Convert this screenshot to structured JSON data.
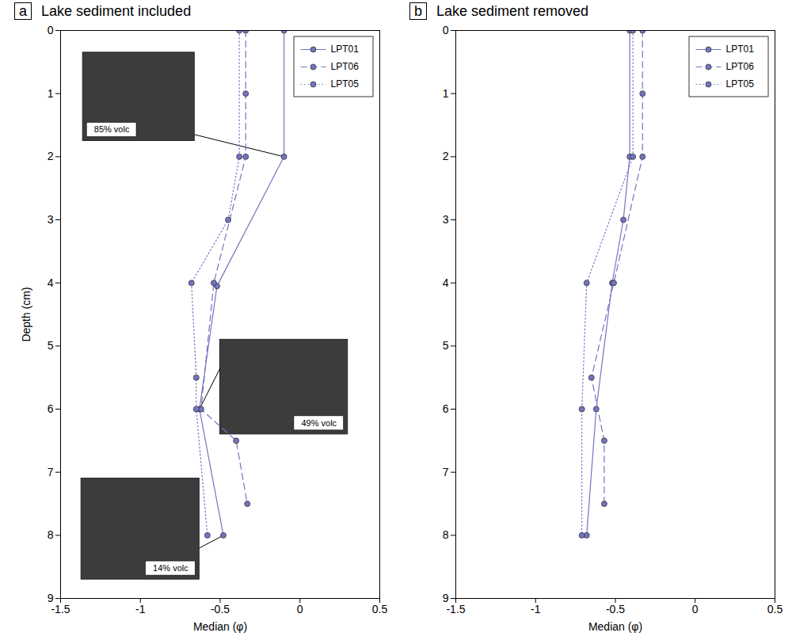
{
  "chart_data": [
    {
      "type": "line",
      "panel_label": "a",
      "title": "Lake sediment included",
      "xlabel": "Median (φ)",
      "ylabel": "Depth (cm)",
      "xlim": [
        -1.5,
        0.5
      ],
      "xticks": [
        -1.5,
        -1,
        -0.5,
        0,
        0.5
      ],
      "ylim": [
        9,
        0
      ],
      "yticks": [
        0,
        1,
        2,
        3,
        4,
        5,
        6,
        7,
        8,
        9
      ],
      "legend": "top-right",
      "series": [
        {
          "name": "LPT01",
          "color": "#7474c4",
          "line_style": "solid",
          "marker": "circle",
          "x": [
            -0.1,
            -0.1,
            -0.52,
            -0.63,
            -0.48
          ],
          "y": [
            0,
            2,
            4.05,
            6,
            8
          ]
        },
        {
          "name": "LPT06",
          "color": "#7474c4",
          "line_style": "dashed",
          "marker": "circle",
          "x": [
            -0.34,
            -0.34,
            -0.34,
            -0.54,
            -0.62,
            -0.4,
            -0.33
          ],
          "y": [
            0,
            1,
            2,
            4,
            6,
            6.5,
            7.5
          ]
        },
        {
          "name": "LPT05",
          "color": "#7474c4",
          "line_style": "dotted",
          "marker": "circle",
          "x": [
            -0.38,
            -0.38,
            -0.45,
            -0.68,
            -0.65,
            -0.65,
            -0.58
          ],
          "y": [
            0,
            2,
            3,
            4,
            5.5,
            6,
            8
          ]
        }
      ],
      "annotations": [
        {
          "text": "85% volc",
          "x": -0.1,
          "y": 2
        },
        {
          "text": "49% volc",
          "x": -0.63,
          "y": 6
        },
        {
          "text": "14% volc",
          "x": -0.48,
          "y": 8
        }
      ]
    },
    {
      "type": "line",
      "panel_label": "b",
      "title": "Lake sediment removed",
      "xlabel": "Median (φ)",
      "xlim": [
        -1.5,
        0.5
      ],
      "xticks": [
        -1.5,
        -1,
        -0.5,
        0,
        0.5
      ],
      "ylim": [
        9,
        0
      ],
      "yticks": [
        0,
        1,
        2,
        3,
        4,
        5,
        6,
        7,
        8,
        9
      ],
      "legend": "top-right",
      "series": [
        {
          "name": "LPT01",
          "color": "#7474c4",
          "line_style": "solid",
          "marker": "circle",
          "x": [
            -0.41,
            -0.41,
            -0.45,
            -0.52,
            -0.62,
            -0.68
          ],
          "y": [
            0,
            2,
            3,
            4,
            6,
            8
          ]
        },
        {
          "name": "LPT06",
          "color": "#7474c4",
          "line_style": "dashed",
          "marker": "circle",
          "x": [
            -0.33,
            -0.33,
            -0.33,
            -0.51,
            -0.65,
            -0.57,
            -0.57
          ],
          "y": [
            0,
            1,
            2,
            4,
            5.5,
            6.5,
            7.5
          ]
        },
        {
          "name": "LPT05",
          "color": "#7474c4",
          "line_style": "dotted",
          "marker": "circle",
          "x": [
            -0.39,
            -0.39,
            -0.68,
            -0.71,
            -0.71
          ],
          "y": [
            0,
            2,
            4,
            6,
            8
          ]
        }
      ]
    }
  ]
}
